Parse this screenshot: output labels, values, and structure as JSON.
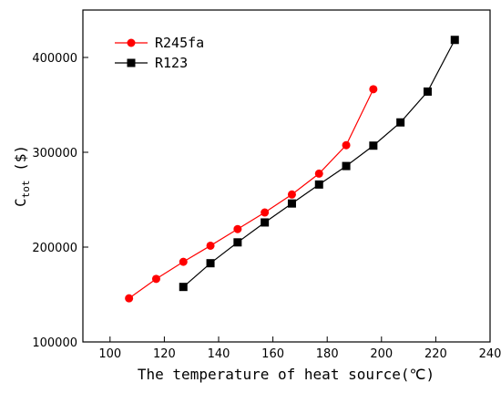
{
  "chart_data": {
    "type": "line",
    "xlabel": "The temperature of heat source(℃)",
    "ylabel_main": "C",
    "ylabel_sub": "tot",
    "ylabel_unit": " ($)",
    "xlim": [
      90,
      240
    ],
    "ylim": [
      100000,
      450000
    ],
    "xticks": [
      100,
      120,
      140,
      160,
      180,
      200,
      220,
      240
    ],
    "yticks": [
      100000,
      200000,
      300000,
      400000
    ],
    "grid": false,
    "legend_position": "top-left",
    "series": [
      {
        "name": "R245fa",
        "color": "#ff0000",
        "marker": "circle",
        "x": [
          107,
          117,
          127,
          137,
          147,
          157,
          167,
          177,
          187,
          197
        ],
        "y": [
          146000,
          166500,
          184500,
          201500,
          219000,
          236500,
          255500,
          277500,
          307500,
          366500
        ]
      },
      {
        "name": "R123",
        "color": "#000000",
        "marker": "square",
        "x": [
          127,
          137,
          147,
          157,
          167,
          177,
          187,
          197,
          207,
          217,
          227
        ],
        "y": [
          158000,
          183000,
          205000,
          226000,
          246000,
          266000,
          285500,
          307000,
          331500,
          364000,
          418500
        ]
      }
    ]
  }
}
